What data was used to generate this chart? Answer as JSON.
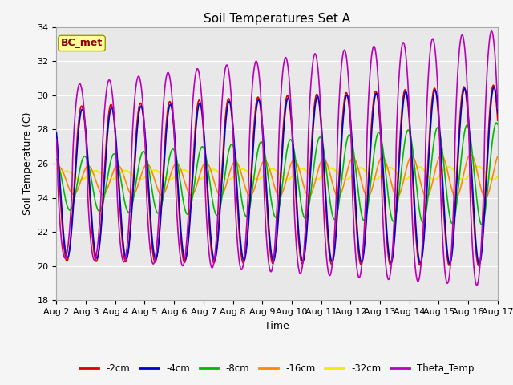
{
  "title": "Soil Temperatures Set A",
  "xlabel": "Time",
  "ylabel": "Soil Temperature (C)",
  "ylim": [
    18,
    34
  ],
  "annotation": "BC_met",
  "xtick_labels": [
    "Aug 2",
    "Aug 3",
    "Aug 4",
    "Aug 5",
    "Aug 6",
    "Aug 7",
    "Aug 8",
    "Aug 9",
    "Aug 10",
    "Aug 11",
    "Aug 12",
    "Aug 13",
    "Aug 14",
    "Aug 15",
    "Aug 16",
    "Aug 17"
  ],
  "series_colors": {
    "-2cm": "#dd0000",
    "-4cm": "#0000cc",
    "-8cm": "#00bb00",
    "-16cm": "#ff8800",
    "-32cm": "#eeee00",
    "Theta_Temp": "#bb00bb"
  },
  "bg_color": "#e8e8e8",
  "grid_color": "#ffffff",
  "title_fontsize": 11,
  "label_fontsize": 9,
  "tick_fontsize": 8
}
